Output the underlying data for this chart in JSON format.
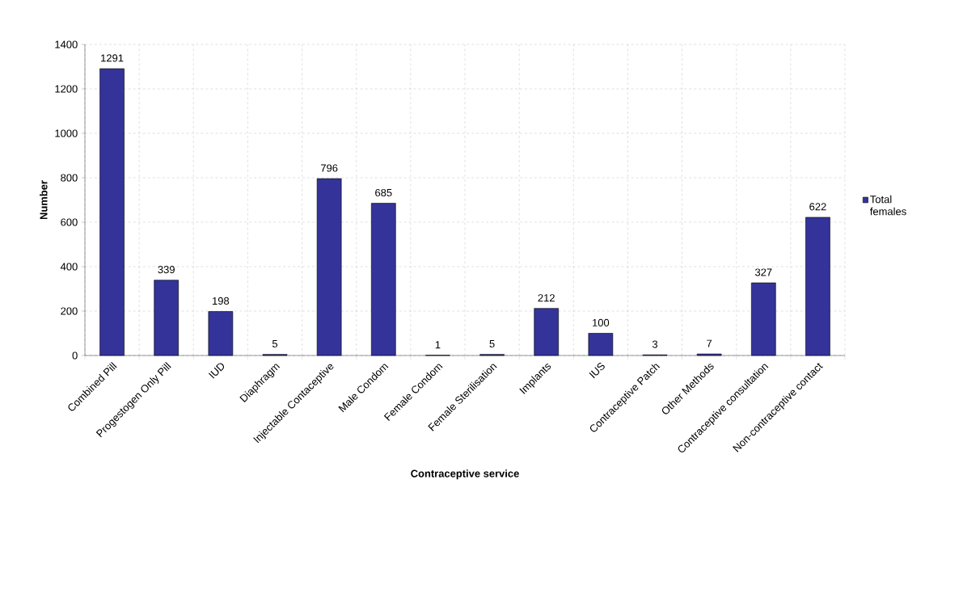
{
  "chart_data": {
    "type": "bar",
    "xlabel": "Contraceptive service",
    "ylabel": "Number",
    "categories": [
      "Combined Pill",
      "Progestogen Only Pill",
      "IUD",
      "Diaphragm",
      "Injectable Contaceptive",
      "Male Condom",
      "Female Condom",
      "Female Sterilisation",
      "Implants",
      "IUS",
      "Contraceptive Patch",
      "Other Methods",
      "Contraceptive consultation",
      "Non-contraceptive contact"
    ],
    "series": [
      {
        "name": "Total females",
        "color": "#333399",
        "values": [
          1291,
          339,
          198,
          5,
          796,
          685,
          1,
          5,
          212,
          100,
          3,
          7,
          327,
          622
        ]
      }
    ],
    "ylim": [
      0,
      1400
    ],
    "yticks": [
      0,
      200,
      400,
      600,
      800,
      1000,
      1200,
      1400
    ],
    "grid": true,
    "legend": "right",
    "data_labels": true
  }
}
